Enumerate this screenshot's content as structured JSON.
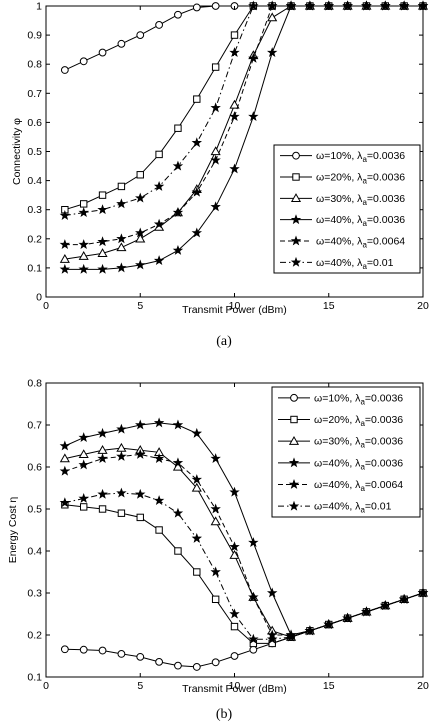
{
  "chart_data": [
    {
      "type": "line",
      "caption": "(a)",
      "xlabel": "Transmit Power (dBm)",
      "ylabel": "Connectivity φ",
      "xlim": [
        0,
        20
      ],
      "ylim": [
        0,
        1
      ],
      "xticks": [
        0,
        5,
        10,
        15,
        20
      ],
      "yticks": [
        0,
        0.1,
        0.2,
        0.3,
        0.4,
        0.5,
        0.6,
        0.7,
        0.8,
        0.9,
        1
      ],
      "ytick_labels": [
        "0",
        "0.1",
        "0.2",
        "0.3",
        "0.4",
        "0.5",
        "0.6",
        "0.7",
        "0.8",
        "0.9",
        "1"
      ],
      "grid": false,
      "legend_position": "lower-right",
      "x": [
        1,
        2,
        3,
        4,
        5,
        6,
        7,
        8,
        9,
        10,
        11,
        12,
        13,
        14,
        15,
        16,
        17,
        18,
        19,
        20
      ],
      "series": [
        {
          "name": "ω=10%, λa=0.0036",
          "name_base": "ω=10%, λ",
          "name_sub": "a",
          "name_tail": "=0.0036",
          "marker": "circle",
          "dash": "solid",
          "values": [
            0.78,
            0.81,
            0.84,
            0.87,
            0.9,
            0.935,
            0.97,
            0.995,
            1,
            1,
            1,
            1,
            1,
            1,
            1,
            1,
            1,
            1,
            1,
            1
          ]
        },
        {
          "name": "ω=20%, λa=0.0036",
          "name_base": "ω=20%, λ",
          "name_sub": "a",
          "name_tail": "=0.0036",
          "marker": "square",
          "dash": "solid",
          "values": [
            0.3,
            0.32,
            0.35,
            0.38,
            0.42,
            0.49,
            0.58,
            0.68,
            0.79,
            0.9,
            1,
            1,
            1,
            1,
            1,
            1,
            1,
            1,
            1,
            1
          ]
        },
        {
          "name": "ω=30%, λa=0.0036",
          "name_base": "ω=30%, λ",
          "name_sub": "a",
          "name_tail": "=0.0036",
          "marker": "triangle",
          "dash": "solid",
          "values": [
            0.13,
            0.14,
            0.15,
            0.17,
            0.2,
            0.24,
            0.29,
            0.37,
            0.5,
            0.66,
            0.83,
            0.96,
            1,
            1,
            1,
            1,
            1,
            1,
            1,
            1
          ]
        },
        {
          "name": "ω=40%, λa=0.0036",
          "name_base": "ω=40%, λ",
          "name_sub": "a",
          "name_tail": "=0.0036",
          "marker": "star",
          "dash": "solid",
          "values": [
            0.095,
            0.095,
            0.095,
            0.1,
            0.11,
            0.125,
            0.16,
            0.22,
            0.31,
            0.44,
            0.62,
            0.84,
            1,
            1,
            1,
            1,
            1,
            1,
            1,
            1
          ]
        },
        {
          "name": "ω=40%, λa=0.0064",
          "name_base": "ω=40%, λ",
          "name_sub": "a",
          "name_tail": "=0.0064",
          "marker": "star",
          "dash": "dashed",
          "values": [
            0.18,
            0.18,
            0.19,
            0.2,
            0.22,
            0.25,
            0.29,
            0.36,
            0.47,
            0.62,
            0.82,
            1,
            1,
            1,
            1,
            1,
            1,
            1,
            1,
            1
          ]
        },
        {
          "name": "ω=40%, λa=0.01",
          "name_base": "ω=40%, λ",
          "name_sub": "a",
          "name_tail": "=0.01",
          "marker": "star",
          "dash": "dashdot",
          "values": [
            0.28,
            0.29,
            0.3,
            0.32,
            0.34,
            0.38,
            0.45,
            0.53,
            0.65,
            0.84,
            1,
            1,
            1,
            1,
            1,
            1,
            1,
            1,
            1,
            1
          ]
        }
      ]
    },
    {
      "type": "line",
      "caption": "(b)",
      "xlabel": "Transmit Power (dBm)",
      "ylabel": "Energy Cost η",
      "xlim": [
        0,
        20
      ],
      "ylim": [
        0.1,
        0.8
      ],
      "xticks": [
        0,
        5,
        10,
        15,
        20
      ],
      "yticks": [
        0.1,
        0.2,
        0.3,
        0.4,
        0.5,
        0.6,
        0.7,
        0.8
      ],
      "ytick_labels": [
        "0.1",
        "0.2",
        "0.3",
        "0.4",
        "0.5",
        "0.6",
        "0.7",
        "0.8"
      ],
      "grid": false,
      "legend_position": "upper-right",
      "x": [
        1,
        2,
        3,
        4,
        5,
        6,
        7,
        8,
        9,
        10,
        11,
        12,
        13,
        14,
        15,
        16,
        17,
        18,
        19,
        20
      ],
      "series": [
        {
          "name": "ω=10%, λa=0.0036",
          "name_base": "ω=10%, λ",
          "name_sub": "a",
          "name_tail": "=0.0036",
          "marker": "circle",
          "dash": "solid",
          "values": [
            0.166,
            0.165,
            0.163,
            0.155,
            0.148,
            0.136,
            0.127,
            0.124,
            0.135,
            0.15,
            0.165,
            0.18,
            0.195,
            0.21,
            0.225,
            0.24,
            0.255,
            0.27,
            0.285,
            0.3
          ]
        },
        {
          "name": "ω=20%, λa=0.0036",
          "name_base": "ω=20%, λ",
          "name_sub": "a",
          "name_tail": "=0.0036",
          "marker": "square",
          "dash": "solid",
          "values": [
            0.51,
            0.505,
            0.5,
            0.49,
            0.48,
            0.45,
            0.4,
            0.35,
            0.285,
            0.22,
            0.18,
            0.18,
            0.195,
            0.21,
            0.225,
            0.24,
            0.255,
            0.27,
            0.285,
            0.3
          ]
        },
        {
          "name": "ω=30%, λa=0.0036",
          "name_base": "ω=30%, λ",
          "name_sub": "a",
          "name_tail": "=0.0036",
          "marker": "triangle",
          "dash": "solid",
          "values": [
            0.62,
            0.63,
            0.64,
            0.645,
            0.64,
            0.635,
            0.6,
            0.55,
            0.47,
            0.39,
            0.29,
            0.21,
            0.195,
            0.21,
            0.225,
            0.24,
            0.255,
            0.27,
            0.285,
            0.3
          ]
        },
        {
          "name": "ω=40%, λa=0.0036",
          "name_base": "ω=40%, λ",
          "name_sub": "a",
          "name_tail": "=0.0036",
          "marker": "star",
          "dash": "solid",
          "values": [
            0.65,
            0.67,
            0.68,
            0.69,
            0.7,
            0.705,
            0.7,
            0.68,
            0.62,
            0.54,
            0.42,
            0.3,
            0.2,
            0.21,
            0.225,
            0.24,
            0.255,
            0.27,
            0.285,
            0.3
          ]
        },
        {
          "name": "ω=40%, λa=0.0064",
          "name_base": "ω=40%, λ",
          "name_sub": "a",
          "name_tail": "=0.0064",
          "marker": "star",
          "dash": "dashed",
          "values": [
            0.59,
            0.605,
            0.62,
            0.625,
            0.63,
            0.62,
            0.61,
            0.57,
            0.5,
            0.41,
            0.29,
            0.2,
            0.2,
            0.21,
            0.225,
            0.24,
            0.255,
            0.27,
            0.285,
            0.3
          ]
        },
        {
          "name": "ω=40%, λa=0.01",
          "name_base": "ω=40%, λ",
          "name_sub": "a",
          "name_tail": "=0.01",
          "marker": "star",
          "dash": "dashdot",
          "values": [
            0.515,
            0.525,
            0.535,
            0.538,
            0.535,
            0.52,
            0.49,
            0.43,
            0.35,
            0.25,
            0.19,
            0.19,
            0.195,
            0.21,
            0.225,
            0.24,
            0.255,
            0.27,
            0.285,
            0.3
          ]
        }
      ]
    }
  ]
}
